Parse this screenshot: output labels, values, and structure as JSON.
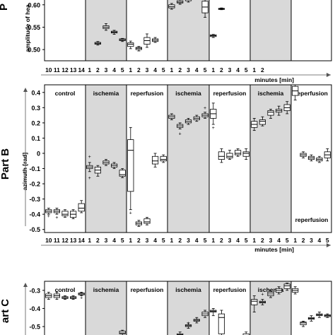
{
  "chart_data": [
    {
      "type": "box",
      "part_label": "P",
      "ylabel": "amplitude of hea",
      "yticks": [
        "0.60",
        "0.55",
        "0.50"
      ],
      "ytick_values": [
        0.6,
        0.55,
        0.5
      ],
      "ylim": [
        0.475,
        0.617
      ],
      "xlabel": "minutes [min]",
      "xticks": [
        "10",
        "11",
        "12",
        "13",
        "14",
        "1",
        "2",
        "3",
        "4",
        "5",
        "1",
        "2",
        "3",
        "4",
        "5",
        "1",
        "2",
        "3",
        "4",
        "5",
        "1",
        "2",
        "3",
        "4",
        "5",
        "1",
        "2"
      ],
      "shading": [
        false,
        true,
        false,
        true,
        false,
        true,
        false
      ],
      "boxes": [
        {
          "p": 6,
          "lo": 0.51,
          "q1": 0.512,
          "med": 0.514,
          "q3": 0.516,
          "hi": 0.518
        },
        {
          "p": 7,
          "lo": 0.543,
          "q1": 0.547,
          "med": 0.55,
          "q3": 0.553,
          "hi": 0.558
        },
        {
          "p": 8,
          "lo": 0.534,
          "q1": 0.537,
          "med": 0.539,
          "q3": 0.541,
          "hi": 0.543
        },
        {
          "p": 9,
          "lo": 0.518,
          "q1": 0.52,
          "med": 0.522,
          "q3": 0.524,
          "hi": 0.525
        },
        {
          "p": 10,
          "lo": 0.502,
          "q1": 0.507,
          "med": 0.512,
          "q3": 0.515,
          "hi": 0.519
        },
        {
          "p": 11,
          "lo": 0.497,
          "q1": 0.5,
          "med": 0.503,
          "q3": 0.505,
          "hi": 0.507
        },
        {
          "p": 12,
          "lo": 0.505,
          "q1": 0.512,
          "med": 0.52,
          "q3": 0.527,
          "hi": 0.535
        },
        {
          "p": 13,
          "lo": 0.516,
          "q1": 0.518,
          "med": 0.521,
          "q3": 0.524,
          "hi": 0.527
        },
        {
          "p": 15,
          "lo": 0.59,
          "q1": 0.593,
          "med": 0.596,
          "q3": 0.6,
          "hi": 0.603
        },
        {
          "p": 16,
          "lo": 0.601,
          "q1": 0.604,
          "med": 0.606,
          "q3": 0.609,
          "hi": 0.612
        },
        {
          "p": 17,
          "lo": 0.606,
          "q1": 0.609,
          "med": 0.612,
          "q3": 0.616,
          "hi": 0.617
        },
        {
          "p": 19,
          "lo": 0.572,
          "q1": 0.582,
          "med": 0.595,
          "q3": 0.608,
          "hi": 0.617
        },
        {
          "p": 20,
          "lo": 0.527,
          "q1": 0.529,
          "med": 0.531,
          "q3": 0.533,
          "hi": 0.534
        },
        {
          "p": 21,
          "lo": 0.589,
          "q1": 0.59,
          "med": 0.591,
          "q3": 0.592,
          "hi": 0.593
        }
      ]
    },
    {
      "type": "box",
      "part_label": "Part B",
      "ylabel": "azimuth [rad]",
      "yticks": [
        "0.4",
        "0.3",
        "0.2",
        "0.1",
        "0",
        "-0.1",
        "-0.2",
        "-0.3",
        "-0.4",
        "-0.5"
      ],
      "ytick_values": [
        0.4,
        0.3,
        0.2,
        0.1,
        0,
        -0.1,
        -0.2,
        -0.3,
        -0.4,
        -0.5
      ],
      "ylim": [
        -0.52,
        0.45
      ],
      "xlabel": "minutes [min]",
      "xticks": [
        "10",
        "11",
        "12",
        "13",
        "14",
        "1",
        "2",
        "3",
        "4",
        "5",
        "1",
        "2",
        "3",
        "4",
        "5",
        "1",
        "2",
        "3",
        "4",
        "5",
        "1",
        "2",
        "3",
        "4",
        "5",
        "1",
        "2",
        "3",
        "4",
        "5",
        "1",
        "2",
        "3",
        "4",
        "5"
      ],
      "panels": [
        "control",
        "ischemia",
        "reperfusion",
        "ischemia",
        "reperfusion",
        "ischemia",
        "reperfusion"
      ],
      "shading": [
        false,
        true,
        false,
        true,
        false,
        true,
        false
      ],
      "boxes": [
        {
          "p": 0,
          "lo": -0.4,
          "q1": -0.39,
          "med": -0.38,
          "q3": -0.37,
          "hi": -0.36,
          "out": [
            -0.41
          ]
        },
        {
          "p": 1,
          "lo": -0.4,
          "q1": -0.39,
          "med": -0.38,
          "q3": -0.37,
          "hi": -0.36,
          "out": [
            -0.42
          ]
        },
        {
          "p": 2,
          "lo": -0.42,
          "q1": -0.41,
          "med": -0.4,
          "q3": -0.38,
          "hi": -0.37
        },
        {
          "p": 3,
          "lo": -0.43,
          "q1": -0.42,
          "med": -0.4,
          "q3": -0.38,
          "hi": -0.37
        },
        {
          "p": 4,
          "lo": -0.39,
          "q1": -0.38,
          "med": -0.36,
          "q3": -0.33,
          "hi": -0.31
        },
        {
          "p": 5,
          "lo": -0.12,
          "q1": -0.1,
          "med": -0.09,
          "q3": -0.08,
          "hi": -0.06,
          "out": [
            -0.02,
            -0.16
          ]
        },
        {
          "p": 6,
          "lo": -0.15,
          "q1": -0.13,
          "med": -0.11,
          "q3": -0.09,
          "hi": -0.08
        },
        {
          "p": 7,
          "lo": -0.08,
          "q1": -0.07,
          "med": -0.06,
          "q3": -0.05,
          "hi": -0.04
        },
        {
          "p": 8,
          "lo": -0.1,
          "q1": -0.09,
          "med": -0.08,
          "q3": -0.07,
          "hi": -0.06
        },
        {
          "p": 9,
          "lo": -0.16,
          "q1": -0.15,
          "med": -0.14,
          "q3": -0.11,
          "hi": -0.1
        },
        {
          "p": 10,
          "lo": -0.37,
          "q1": -0.25,
          "med": 0.02,
          "q3": 0.09,
          "hi": 0.17,
          "out": [
            -0.39
          ]
        },
        {
          "p": 11,
          "lo": -0.48,
          "q1": -0.47,
          "med": -0.46,
          "q3": -0.45,
          "hi": -0.44
        },
        {
          "p": 12,
          "lo": -0.47,
          "q1": -0.46,
          "med": -0.45,
          "q3": -0.43,
          "hi": -0.42
        },
        {
          "p": 13,
          "lo": -0.09,
          "q1": -0.07,
          "med": -0.05,
          "q3": -0.02,
          "hi": 0.0
        },
        {
          "p": 14,
          "lo": -0.06,
          "q1": -0.05,
          "med": -0.04,
          "q3": -0.02,
          "hi": -0.01
        },
        {
          "p": 15,
          "lo": 0.22,
          "q1": 0.23,
          "med": 0.24,
          "q3": 0.25,
          "hi": 0.26
        },
        {
          "p": 16,
          "lo": 0.16,
          "q1": 0.17,
          "med": 0.18,
          "q3": 0.19,
          "hi": 0.2,
          "out": [
            0.13
          ]
        },
        {
          "p": 17,
          "lo": 0.19,
          "q1": 0.2,
          "med": 0.21,
          "q3": 0.22,
          "hi": 0.23
        },
        {
          "p": 18,
          "lo": 0.21,
          "q1": 0.22,
          "med": 0.23,
          "q3": 0.24,
          "hi": 0.25
        },
        {
          "p": 19,
          "lo": 0.23,
          "q1": 0.24,
          "med": 0.25,
          "q3": 0.26,
          "hi": 0.27,
          "out": [
            0.3
          ]
        },
        {
          "p": 20,
          "lo": 0.19,
          "q1": 0.23,
          "med": 0.26,
          "q3": 0.29,
          "hi": 0.33,
          "out": [
            0.17
          ]
        },
        {
          "p": 21,
          "lo": -0.06,
          "q1": -0.04,
          "med": -0.02,
          "q3": 0.01,
          "hi": 0.03
        },
        {
          "p": 22,
          "lo": -0.04,
          "q1": -0.03,
          "med": -0.02,
          "q3": 0.0,
          "hi": 0.02
        },
        {
          "p": 23,
          "lo": -0.02,
          "q1": -0.01,
          "med": 0.0,
          "q3": 0.02,
          "hi": 0.03
        },
        {
          "p": 24,
          "lo": -0.04,
          "q1": -0.02,
          "med": 0.0,
          "q3": 0.01,
          "hi": 0.03
        },
        {
          "p": 25,
          "lo": 0.15,
          "q1": 0.17,
          "med": 0.19,
          "q3": 0.21,
          "hi": 0.23
        },
        {
          "p": 26,
          "lo": 0.18,
          "q1": 0.19,
          "med": 0.21,
          "q3": 0.22,
          "hi": 0.24
        },
        {
          "p": 27,
          "lo": 0.23,
          "q1": 0.25,
          "med": 0.27,
          "q3": 0.28,
          "hi": 0.29
        },
        {
          "p": 28,
          "lo": 0.25,
          "q1": 0.27,
          "med": 0.28,
          "q3": 0.29,
          "hi": 0.31
        },
        {
          "p": 29,
          "lo": 0.26,
          "q1": 0.28,
          "med": 0.3,
          "q3": 0.32,
          "hi": 0.34
        },
        {
          "p": 30,
          "lo": 0.35,
          "q1": 0.38,
          "med": 0.41,
          "q3": 0.44,
          "hi": 0.45
        },
        {
          "p": 31,
          "lo": -0.03,
          "q1": -0.02,
          "med": -0.01,
          "q3": 0.0,
          "hi": 0.01
        },
        {
          "p": 32,
          "lo": -0.05,
          "q1": -0.04,
          "med": -0.03,
          "q3": -0.02,
          "hi": -0.01
        },
        {
          "p": 33,
          "lo": -0.06,
          "q1": -0.05,
          "med": -0.04,
          "q3": -0.03,
          "hi": -0.02
        },
        {
          "p": 34,
          "lo": -0.05,
          "q1": -0.03,
          "med": -0.01,
          "q3": 0.01,
          "hi": 0.03
        }
      ],
      "extra_label": "reperfusion"
    },
    {
      "type": "box",
      "part_label": "art C",
      "yticks": [
        "-0.3",
        "-0.4",
        "-0.5"
      ],
      "ytick_values": [
        -0.3,
        -0.4,
        -0.5
      ],
      "ylim": [
        -0.57,
        -0.25
      ],
      "panels": [
        "control",
        "ischemia",
        "reperfusion",
        "ischemia",
        "reperfusion",
        "ischemia",
        ""
      ],
      "shading": [
        false,
        true,
        false,
        true,
        false,
        true,
        false
      ],
      "boxes": [
        {
          "p": 0,
          "lo": -0.35,
          "q1": -0.34,
          "med": -0.33,
          "q3": -0.32,
          "hi": -0.31
        },
        {
          "p": 1,
          "lo": -0.35,
          "q1": -0.34,
          "med": -0.33,
          "q3": -0.32,
          "hi": -0.31
        },
        {
          "p": 2,
          "lo": -0.35,
          "q1": -0.345,
          "med": -0.34,
          "q3": -0.335,
          "hi": -0.33
        },
        {
          "p": 3,
          "lo": -0.35,
          "q1": -0.345,
          "med": -0.34,
          "q3": -0.335,
          "hi": -0.33
        },
        {
          "p": 4,
          "lo": -0.33,
          "q1": -0.325,
          "med": -0.32,
          "q3": -0.315,
          "hi": -0.31,
          "out": [
            -0.34
          ]
        },
        {
          "p": 9,
          "lo": -0.55,
          "q1": -0.54,
          "med": -0.535,
          "q3": -0.525,
          "hi": -0.52
        },
        {
          "p": 16,
          "lo": -0.56,
          "q1": -0.55,
          "med": -0.545,
          "q3": -0.54,
          "hi": -0.53
        },
        {
          "p": 17,
          "lo": -0.51,
          "q1": -0.5,
          "med": -0.495,
          "q3": -0.49,
          "hi": -0.48,
          "out": [
            -0.48
          ]
        },
        {
          "p": 18,
          "lo": -0.48,
          "q1": -0.47,
          "med": -0.465,
          "q3": -0.46,
          "hi": -0.45
        },
        {
          "p": 19,
          "lo": -0.45,
          "q1": -0.44,
          "med": -0.43,
          "q3": -0.42,
          "hi": -0.41
        },
        {
          "p": 20,
          "lo": -0.44,
          "q1": -0.42,
          "med": -0.415,
          "q3": -0.41,
          "hi": -0.4
        },
        {
          "p": 21,
          "lo": -0.57,
          "q1": -0.54,
          "med": -0.45,
          "q3": -0.43,
          "hi": -0.41
        },
        {
          "p": 24,
          "lo": -0.57,
          "q1": -0.56,
          "med": -0.55,
          "q3": -0.54,
          "hi": -0.53
        },
        {
          "p": 25,
          "lo": -0.42,
          "q1": -0.38,
          "med": -0.36,
          "q3": -0.35,
          "hi": -0.33
        },
        {
          "p": 26,
          "lo": -0.38,
          "q1": -0.37,
          "med": -0.365,
          "q3": -0.36,
          "hi": -0.35,
          "out": [
            -0.32
          ]
        },
        {
          "p": 27,
          "lo": -0.34,
          "q1": -0.33,
          "med": -0.32,
          "q3": -0.31,
          "hi": -0.3
        },
        {
          "p": 28,
          "lo": -0.32,
          "q1": -0.31,
          "med": -0.3,
          "q3": -0.29,
          "hi": -0.28
        },
        {
          "p": 29,
          "lo": -0.3,
          "q1": -0.29,
          "med": -0.275,
          "q3": -0.265,
          "hi": -0.26
        },
        {
          "p": 30,
          "lo": -0.32,
          "q1": -0.31,
          "med": -0.3,
          "q3": -0.29,
          "hi": -0.28
        },
        {
          "p": 31,
          "lo": -0.5,
          "q1": -0.49,
          "med": -0.48,
          "q3": -0.475,
          "hi": -0.47
        },
        {
          "p": 32,
          "lo": -0.47,
          "q1": -0.46,
          "med": -0.455,
          "q3": -0.45,
          "hi": -0.44
        },
        {
          "p": 33,
          "lo": -0.45,
          "q1": -0.44,
          "med": -0.435,
          "q3": -0.43,
          "hi": -0.42
        },
        {
          "p": 34,
          "lo": -0.45,
          "q1": -0.445,
          "med": -0.44,
          "q3": -0.435,
          "hi": -0.43
        }
      ]
    }
  ]
}
